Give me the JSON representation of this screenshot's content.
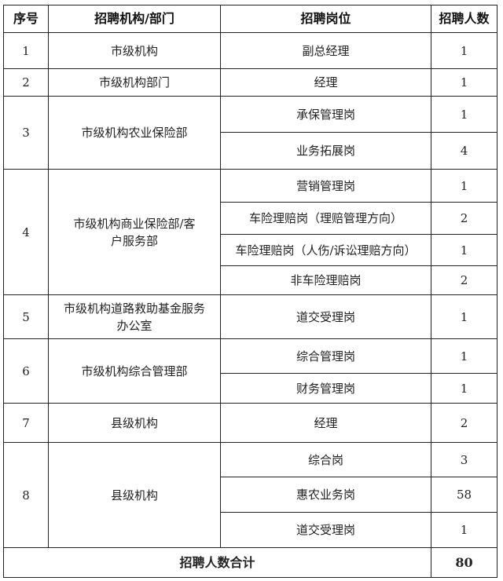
{
  "headers": {
    "seq": "序号",
    "org": "招聘机构/部门",
    "position": "招聘岗位",
    "count": "招聘人数"
  },
  "rows": [
    {
      "seq": "1",
      "org": "市级机构",
      "positions": [
        {
          "name": "副总经理",
          "count": "1"
        }
      ]
    },
    {
      "seq": "2",
      "org": "市级机构部门",
      "positions": [
        {
          "name": "经理",
          "count": "1"
        }
      ]
    },
    {
      "seq": "3",
      "org": "市级机构农业保险部",
      "positions": [
        {
          "name": "承保管理岗",
          "count": "1"
        },
        {
          "name": "业务拓展岗",
          "count": "4"
        }
      ]
    },
    {
      "seq": "4",
      "org": "市级机构商业保险部/客户服务部",
      "positions": [
        {
          "name": "营销管理岗",
          "count": "1"
        },
        {
          "name": "车险理赔岗（理赔管理方向）",
          "count": "2"
        },
        {
          "name": "车险理赔岗（人伤/诉讼理赔方向）",
          "count": "1"
        },
        {
          "name": "非车险理赔岗",
          "count": "2"
        }
      ]
    },
    {
      "seq": "5",
      "org": "市级机构道路救助基金服务办公室",
      "positions": [
        {
          "name": "道交受理岗",
          "count": "1"
        }
      ]
    },
    {
      "seq": "6",
      "org": "市级机构综合管理部",
      "positions": [
        {
          "name": "综合管理岗",
          "count": "1"
        },
        {
          "name": "财务管理岗",
          "count": "1"
        }
      ]
    },
    {
      "seq": "7",
      "org": "县级机构",
      "positions": [
        {
          "name": "经理",
          "count": "2"
        }
      ]
    },
    {
      "seq": "8",
      "org": "县级机构",
      "positions": [
        {
          "name": "综合岗",
          "count": "3"
        },
        {
          "name": "惠农业务岗",
          "count": "58"
        },
        {
          "name": "道交受理岗",
          "count": "1"
        }
      ]
    }
  ],
  "total": {
    "label": "招聘人数合计",
    "count": "80"
  }
}
